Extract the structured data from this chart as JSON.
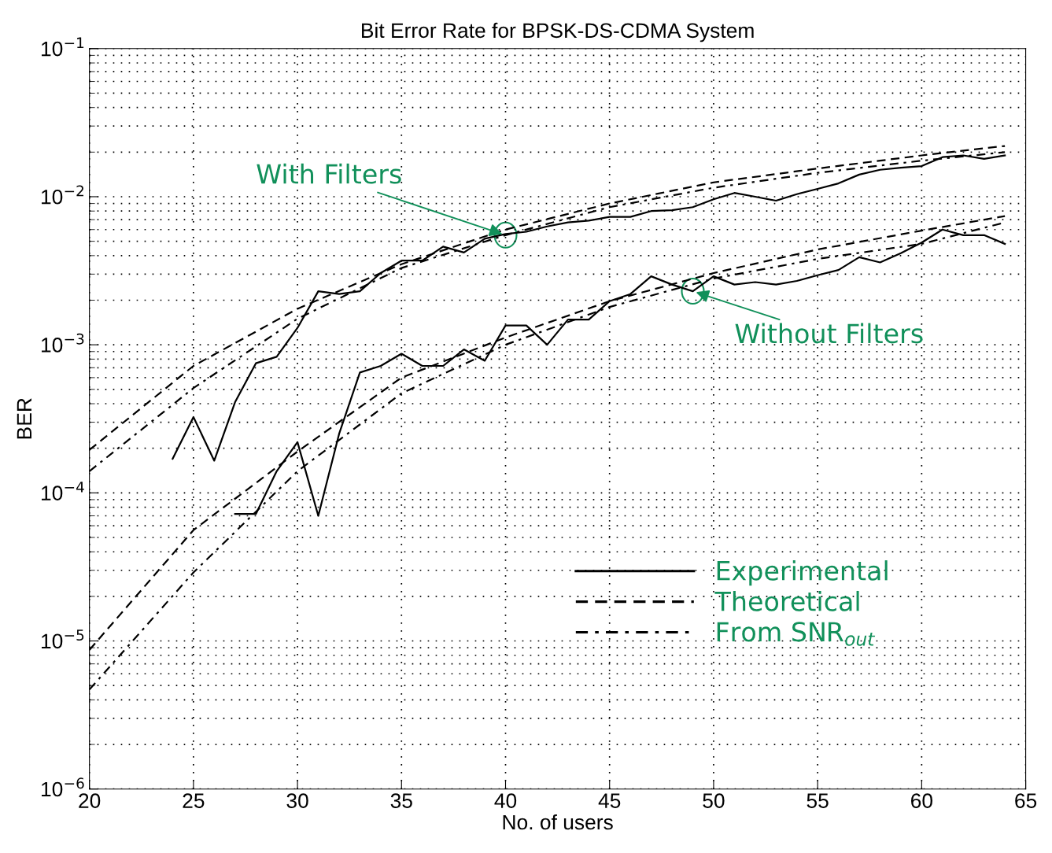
{
  "chart_data": {
    "type": "line",
    "title": "Bit Error Rate for BPSK-DS-CDMA System",
    "xlabel": "No. of users",
    "ylabel": "BER",
    "log": "y",
    "grid": true,
    "legend": "lower right",
    "xlim": [
      20,
      65
    ],
    "xticks": [
      20,
      25,
      30,
      35,
      40,
      45,
      50,
      55,
      60,
      65
    ],
    "ylim": [
      1e-06,
      0.1
    ],
    "yticks": [
      {
        "value": 1e-06,
        "label": "10$^{−6}$"
      },
      {
        "value": 1e-05,
        "label": "10$^{−5}$"
      },
      {
        "value": 0.0001,
        "label": "10$^{−4}$"
      },
      {
        "value": 0.001,
        "label": "10$^{−3}$"
      },
      {
        "value": 0.01,
        "label": "10$^{−2}$"
      },
      {
        "value": 0.1,
        "label": "10$^{−1}$"
      }
    ],
    "annotations": [
      {
        "text": "With Filters",
        "x": 40,
        "y": 0.0055
      },
      {
        "text": "Without Filters",
        "x": 49,
        "y": 0.0023
      }
    ],
    "series": [
      {
        "name": "Experimental",
        "color": "#000000",
        "line_style": "solid",
        "x": [
          24,
          25,
          26,
          27,
          28,
          29,
          30,
          31,
          32,
          33,
          34,
          35,
          36,
          37,
          38,
          39,
          40,
          41,
          42,
          43,
          44,
          45,
          46,
          47,
          48,
          49,
          50,
          51,
          52,
          53,
          54,
          55,
          56,
          57,
          58,
          59,
          60,
          61,
          62,
          63,
          64
        ],
        "values": [
          0.00017,
          0.000325,
          0.000165,
          0.00041,
          0.00075,
          0.00083,
          0.0013,
          0.0023,
          0.0022,
          0.0023,
          0.00305,
          0.0037,
          0.0037,
          0.0046,
          0.0042,
          0.0052,
          0.0056,
          0.0058,
          0.0063,
          0.0067,
          0.0069,
          0.0073,
          0.0073,
          0.008,
          0.0081,
          0.0085,
          0.0096,
          0.0106,
          0.01,
          0.0094,
          0.0104,
          0.0113,
          0.0123,
          0.0141,
          0.0152,
          0.0157,
          0.0161,
          0.0185,
          0.019,
          0.018,
          0.019
        ]
      },
      {
        "name": "Theoretical",
        "color": "#000000",
        "line_style": "dashed",
        "x": [
          20,
          25,
          30,
          35,
          40,
          45,
          50,
          55,
          60,
          64
        ],
        "values": [
          0.000195,
          0.00072,
          0.00175,
          0.0035,
          0.006,
          0.009,
          0.0125,
          0.0155,
          0.019,
          0.022
        ]
      },
      {
        "name": "From SNR$_{out}$",
        "color": "#000000",
        "line_style": "dashdot",
        "x": [
          20,
          25,
          30,
          35,
          40,
          45,
          50,
          55,
          60,
          64
        ],
        "values": [
          0.00014,
          0.00051,
          0.0015,
          0.0033,
          0.0055,
          0.0085,
          0.0115,
          0.0145,
          0.0175,
          0.02
        ]
      },
      {
        "color": "#000000",
        "line_style": "solid",
        "x": [
          27,
          28,
          29,
          30,
          31,
          32,
          33,
          34,
          35,
          36,
          37,
          38,
          39,
          40,
          41,
          42,
          43,
          44,
          45,
          46,
          47,
          48,
          49,
          50,
          51,
          52,
          53,
          54,
          55,
          56,
          57,
          58,
          59,
          60,
          61,
          62,
          63,
          64
        ],
        "values": [
          7.2e-05,
          7.2e-05,
          0.00014,
          0.00022,
          7e-05,
          0.00025,
          0.00065,
          0.00072,
          0.00087,
          0.00072,
          0.00072,
          0.00093,
          0.00078,
          0.00135,
          0.00135,
          0.001,
          0.00148,
          0.00148,
          0.00197,
          0.0022,
          0.0029,
          0.00255,
          0.0023,
          0.0029,
          0.00255,
          0.00265,
          0.00255,
          0.0027,
          0.00295,
          0.0032,
          0.0039,
          0.0036,
          0.00415,
          0.0049,
          0.006,
          0.0055,
          0.0055,
          0.0048
        ]
      },
      {
        "color": "#000000",
        "line_style": "dashed",
        "x": [
          20,
          25,
          30,
          35,
          40,
          45,
          50,
          55,
          60,
          64
        ],
        "values": [
          8.7e-06,
          5.6e-05,
          0.00019,
          0.0006,
          0.00112,
          0.00197,
          0.00305,
          0.0044,
          0.0059,
          0.0074
        ]
      },
      {
        "color": "#000000",
        "line_style": "dashdot",
        "x": [
          20,
          25,
          30,
          35,
          40,
          45,
          50,
          55,
          60,
          64
        ],
        "values": [
          4.7e-06,
          2.9e-05,
          0.00014,
          0.00047,
          0.001,
          0.0018,
          0.0028,
          0.0038,
          0.0048,
          0.0067
        ]
      }
    ]
  }
}
